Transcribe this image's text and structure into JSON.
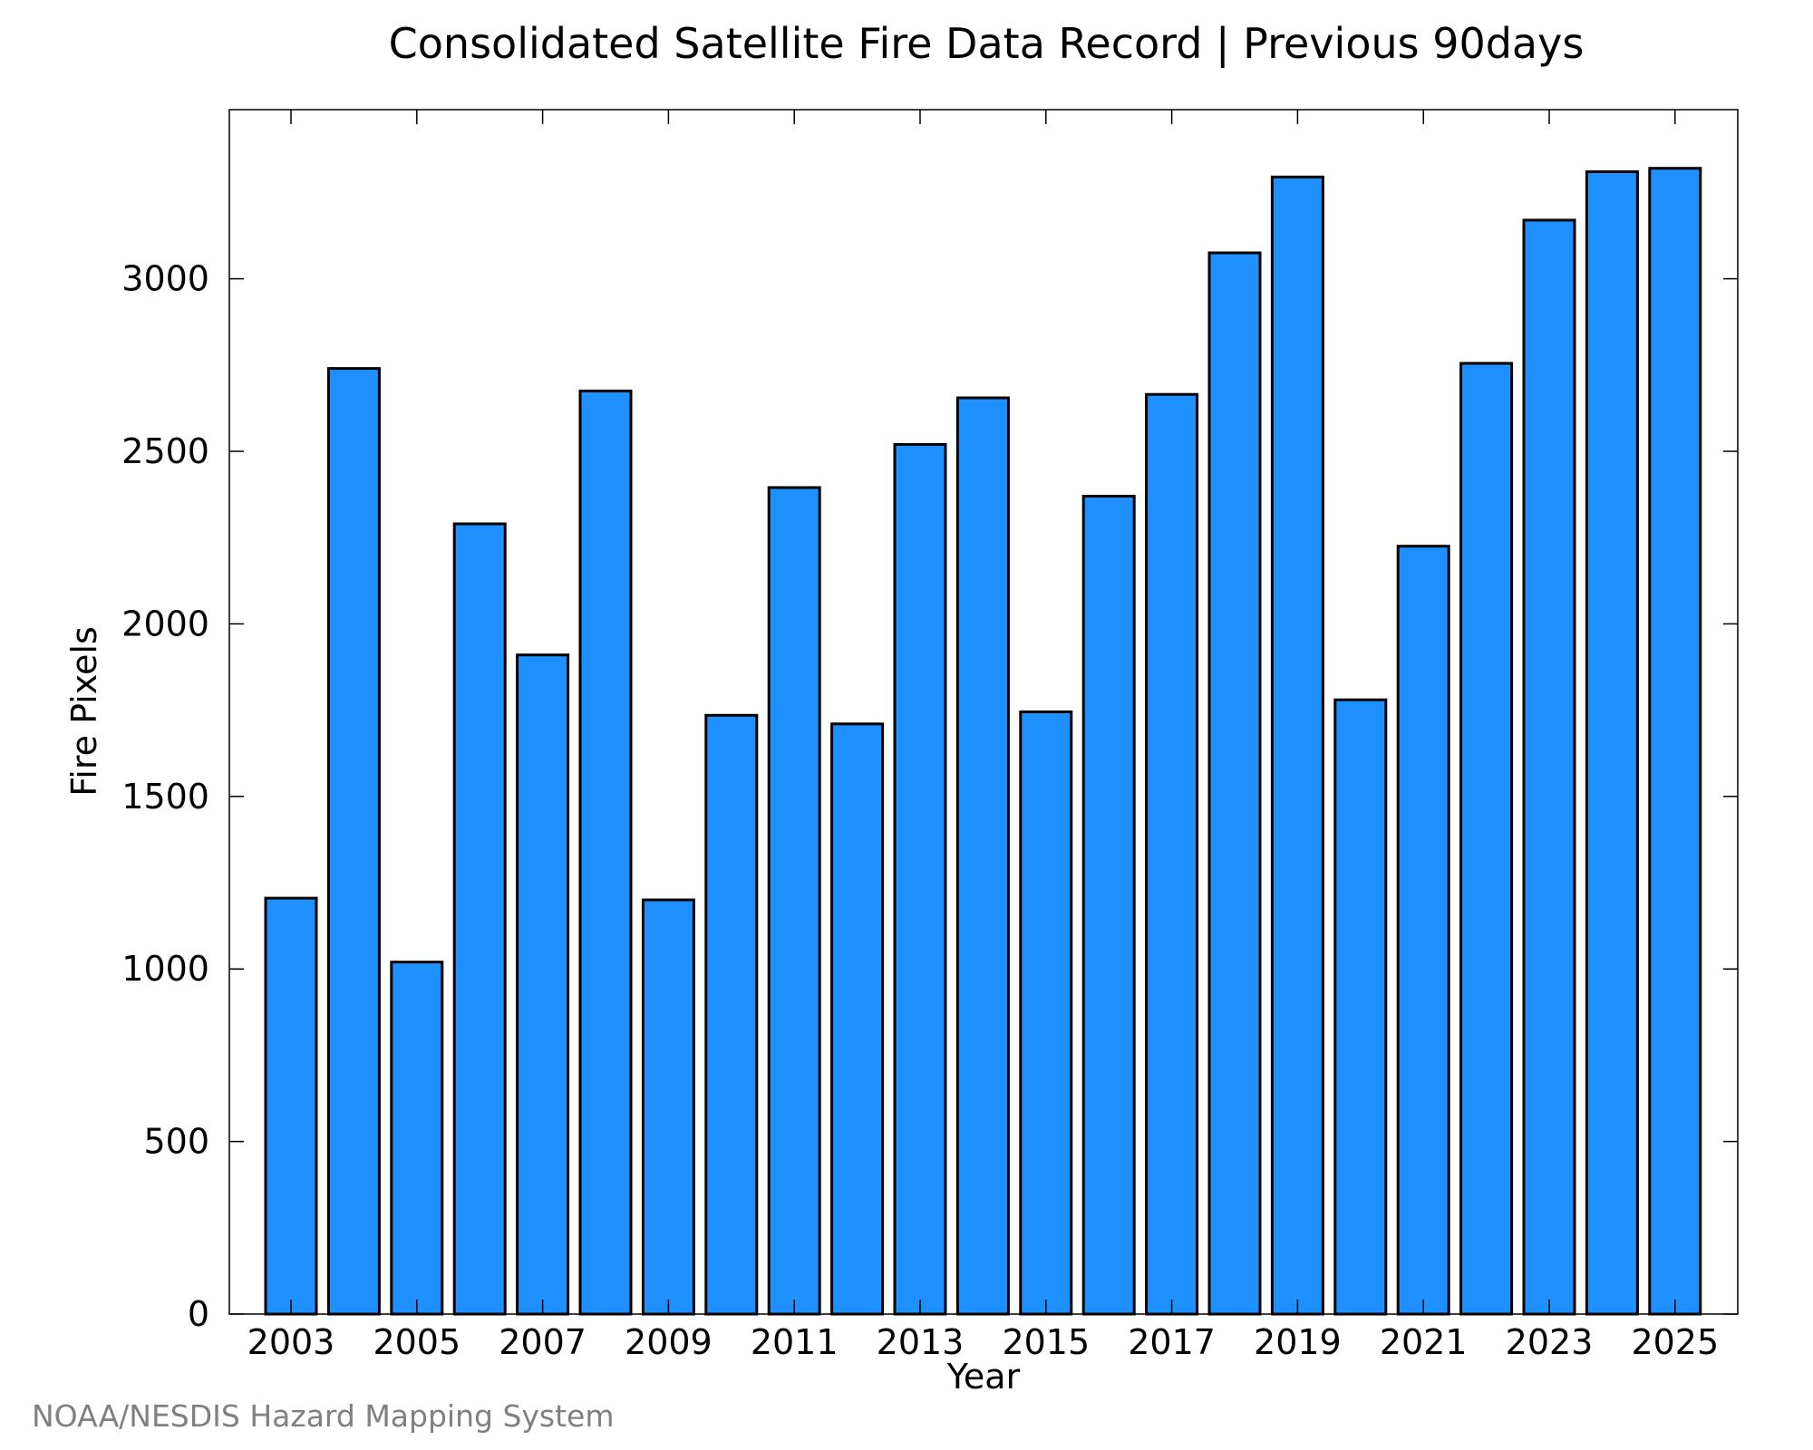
{
  "chart_data": {
    "type": "bar",
    "title": "Consolidated Satellite Fire Data Record | Previous 90days",
    "xlabel": "Year",
    "ylabel": "Fire Pixels",
    "categories": [
      "2003",
      "2004",
      "2005",
      "2006",
      "2007",
      "2008",
      "2009",
      "2010",
      "2011",
      "2012",
      "2013",
      "2014",
      "2015",
      "2016",
      "2017",
      "2018",
      "2019",
      "2020",
      "2021",
      "2022",
      "2023",
      "2024",
      "2025"
    ],
    "values": [
      1205,
      2740,
      1020,
      2290,
      1910,
      2675,
      1200,
      1735,
      2395,
      1710,
      2520,
      2655,
      1745,
      2370,
      2665,
      3075,
      3295,
      1780,
      2225,
      2755,
      3170,
      3310,
      3320
    ],
    "x_tick_labels": [
      "2003",
      "2005",
      "2007",
      "2009",
      "2011",
      "2013",
      "2015",
      "2017",
      "2019",
      "2021",
      "2023",
      "2025"
    ],
    "y_ticks": [
      0,
      500,
      1000,
      1500,
      2000,
      2500,
      3000
    ],
    "ylim": [
      0,
      3490
    ],
    "bar_color": "#1e90ff",
    "grid": false,
    "legend": "none"
  },
  "credit": "NOAA/NESDIS Hazard Mapping System"
}
